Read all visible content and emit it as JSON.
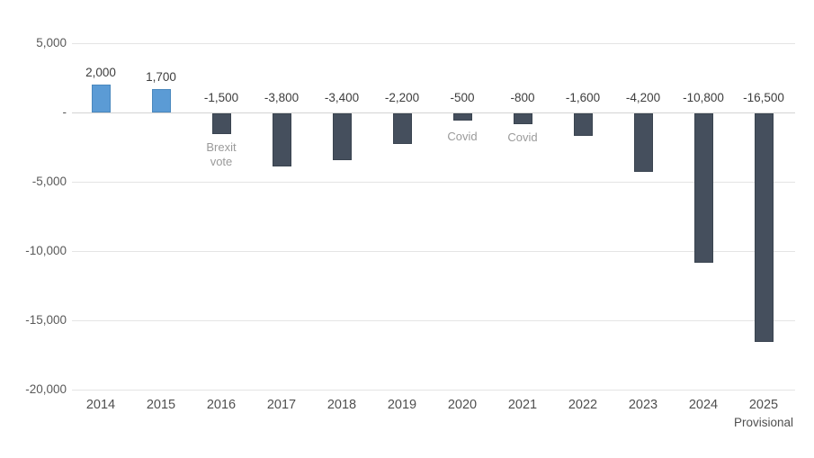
{
  "chart_data": {
    "type": "bar",
    "categories": [
      "2014",
      "2015",
      "2016",
      "2017",
      "2018",
      "2019",
      "2020",
      "2021",
      "2022",
      "2023",
      "2024",
      "2025"
    ],
    "category_sublabels": {
      "2025": "Provisional"
    },
    "values": [
      2000,
      1700,
      -1500,
      -3800,
      -3400,
      -2200,
      -500,
      -800,
      -1600,
      -4200,
      -10800,
      -16500
    ],
    "value_labels": [
      "2,000",
      "1,700",
      "-1,500",
      "-3,800",
      "-3,400",
      "-2,200",
      "-500",
      "-800",
      "-1,600",
      "-4,200",
      "-10,800",
      "-16,500"
    ],
    "y_ticks": [
      {
        "value": 5000,
        "label": "5,000"
      },
      {
        "value": 0,
        "label": "-"
      },
      {
        "value": -5000,
        "label": "-5,000"
      },
      {
        "value": -10000,
        "label": "-10,000"
      },
      {
        "value": -15000,
        "label": "-15,000"
      },
      {
        "value": -20000,
        "label": "-20,000"
      }
    ],
    "ylim": [
      -20000,
      5000
    ],
    "grid": true,
    "annotations": [
      {
        "category": "2016",
        "lines": [
          "Brexit",
          "vote"
        ]
      },
      {
        "category": "2020",
        "lines": [
          "Covid"
        ]
      },
      {
        "category": "2021",
        "lines": [
          "Covid"
        ]
      }
    ],
    "colors": {
      "positive": "#5B9BD5",
      "positive_border": "#4A88BE",
      "negative": "#454F5D",
      "negative_border": "#3A4450",
      "gridline": "#E4E4E4",
      "zero_line": "#D4D4D4",
      "tick_label": "#595959",
      "value_label": "#3D3D3D",
      "annotation": "#9A9A9A",
      "year_label": "#4F4F4F"
    }
  }
}
